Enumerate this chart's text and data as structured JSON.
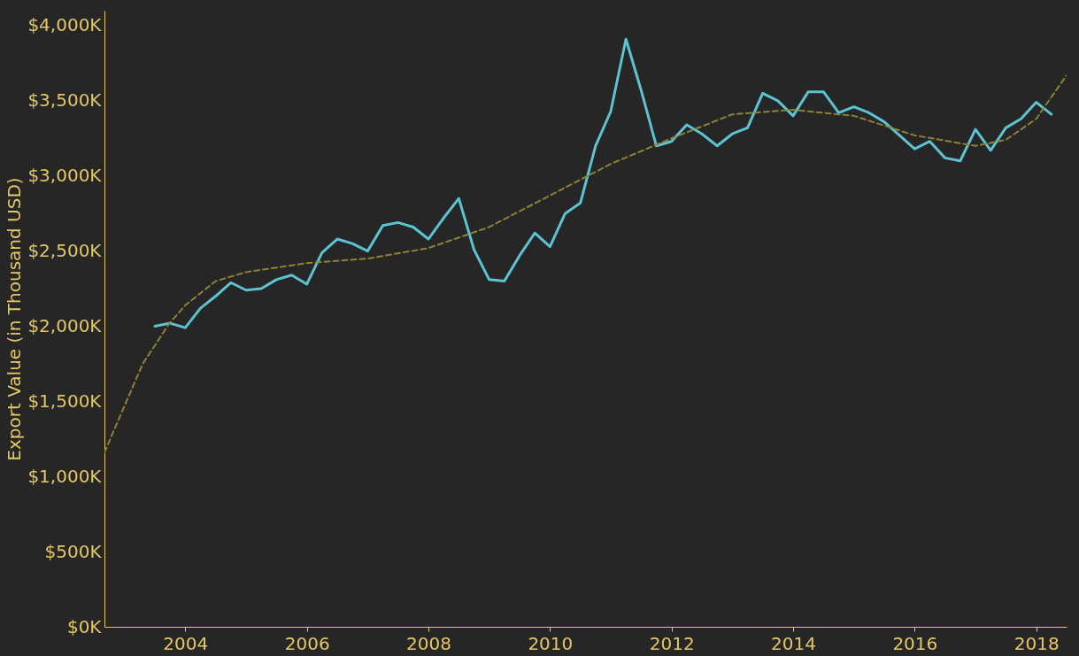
{
  "chart_data": {
    "type": "line",
    "ylabel": "Export Value (in Thousand USD)",
    "xlim": [
      2002.67,
      2018.5
    ],
    "xticks": [
      2004,
      2006,
      2008,
      2010,
      2012,
      2014,
      2016,
      2018
    ],
    "ylim": [
      0,
      4100
    ],
    "yticks": [
      {
        "value": 0,
        "label": "$0K"
      },
      {
        "value": 500,
        "label": "$500K"
      },
      {
        "value": 1000,
        "label": "$1,000K"
      },
      {
        "value": 1500,
        "label": "$1,500K"
      },
      {
        "value": 2000,
        "label": "$2,000K"
      },
      {
        "value": 2500,
        "label": "$2,500K"
      },
      {
        "value": 3000,
        "label": "$3,000K"
      },
      {
        "value": 3500,
        "label": "$3,500K"
      },
      {
        "value": 4000,
        "label": "$4,000K"
      }
    ],
    "grid": false,
    "series": [
      {
        "color": "#5cc3d1",
        "line_style": "solid",
        "x": [
          2003.5,
          2003.75,
          2004,
          2004.25,
          2004.5,
          2004.75,
          2005,
          2005.25,
          2005.5,
          2005.75,
          2006,
          2006.25,
          2006.5,
          2006.75,
          2007,
          2007.25,
          2007.5,
          2007.75,
          2008,
          2008.25,
          2008.5,
          2008.75,
          2009,
          2009.25,
          2009.5,
          2009.75,
          2010,
          2010.25,
          2010.5,
          2010.75,
          2011,
          2011.25,
          2011.5,
          2011.75,
          2012,
          2012.25,
          2012.5,
          2012.75,
          2013,
          2013.25,
          2013.5,
          2013.75,
          2014,
          2014.25,
          2014.5,
          2014.75,
          2015,
          2015.25,
          2015.5,
          2015.75,
          2016,
          2016.25,
          2016.5,
          2016.75,
          2017,
          2017.25,
          2017.5,
          2017.75,
          2018,
          2018.25
        ],
        "values": [
          2000,
          2020,
          1990,
          2120,
          2200,
          2290,
          2240,
          2250,
          2310,
          2340,
          2280,
          2490,
          2580,
          2550,
          2500,
          2670,
          2690,
          2660,
          2580,
          2720,
          2850,
          2510,
          2310,
          2300,
          2470,
          2620,
          2530,
          2750,
          2820,
          3200,
          3430,
          3910,
          3570,
          3200,
          3230,
          3340,
          3280,
          3200,
          3280,
          3320,
          3550,
          3500,
          3400,
          3560,
          3560,
          3420,
          3460,
          3420,
          3360,
          3270,
          3180,
          3230,
          3120,
          3100,
          3310,
          3170,
          3320,
          3380,
          3490,
          3410
        ]
      },
      {
        "type": "line",
        "color": "#8c8239",
        "line_style": "dashed",
        "x": [
          2002.67,
          2003,
          2003.3,
          2003.74,
          2004,
          2004.5,
          2005,
          2006,
          2007,
          2008,
          2009,
          2010,
          2011,
          2012,
          2013,
          2014,
          2015,
          2016,
          2017,
          2017.5,
          2018,
          2018.5
        ],
        "values": [
          1160,
          1470,
          1750,
          2020,
          2140,
          2300,
          2360,
          2420,
          2450,
          2520,
          2660,
          2870,
          3080,
          3250,
          3410,
          3440,
          3400,
          3270,
          3200,
          3240,
          3380,
          3670
        ]
      }
    ]
  }
}
